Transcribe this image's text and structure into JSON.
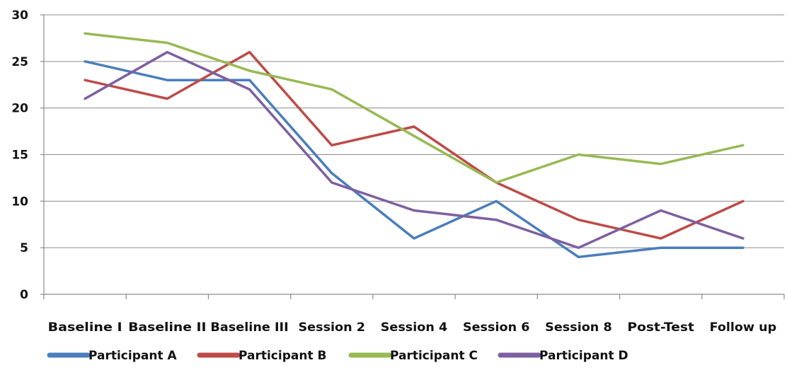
{
  "chart_data": {
    "type": "line",
    "title": "",
    "xlabel": "",
    "ylabel": "",
    "ylim": [
      0,
      30
    ],
    "yticks": [
      0,
      5,
      10,
      15,
      20,
      25,
      30
    ],
    "grid": true,
    "legend_position": "bottom",
    "categories": [
      "Baseline I",
      "Baseline II",
      "Baseline III",
      "Session 2",
      "Session 4",
      "Session 6",
      "Session 8",
      "Post-Test",
      "Follow up"
    ],
    "series": [
      {
        "name": "Participant A",
        "color": "#4a7ebb",
        "values": [
          25,
          23,
          23,
          13,
          6,
          10,
          4,
          5,
          5
        ]
      },
      {
        "name": "Participant B",
        "color": "#be4b48",
        "values": [
          23,
          21,
          26,
          16,
          18,
          12,
          8,
          6,
          10
        ]
      },
      {
        "name": "Participant C",
        "color": "#98b954",
        "values": [
          28,
          27,
          24,
          22,
          17,
          12,
          15,
          14,
          16
        ]
      },
      {
        "name": "Participant D",
        "color": "#7d60a0",
        "values": [
          21,
          26,
          22,
          12,
          9,
          8,
          5,
          9,
          6
        ]
      }
    ]
  }
}
